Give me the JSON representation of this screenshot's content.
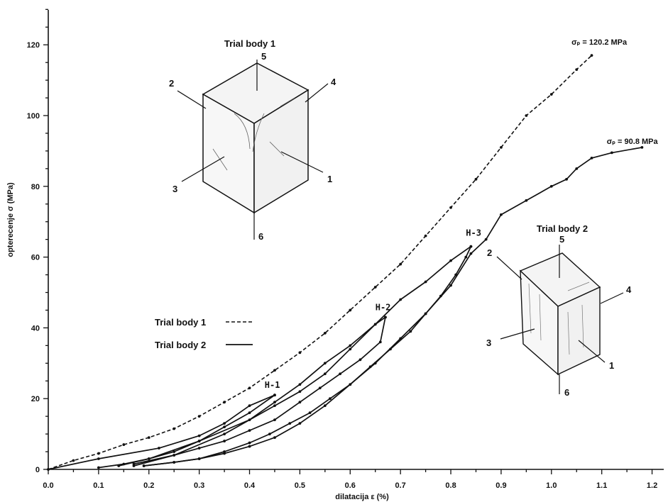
{
  "chart_data": {
    "type": "line",
    "xlabel": "dilatacija ε (%)",
    "ylabel": "opterecenje σ (MPa)",
    "xlim": [
      0,
      1.25
    ],
    "ylim": [
      0,
      130
    ],
    "xticks": [
      "0.0",
      "0.1",
      "0.2",
      "0.3",
      "0.4",
      "0.5",
      "0.6",
      "0.7",
      "0.8",
      "0.9",
      "1.0",
      "1.1",
      "1.2"
    ],
    "yticks": [
      "0",
      "20",
      "40",
      "60",
      "80",
      "100",
      "120"
    ],
    "grid": false,
    "legend": {
      "position": "middle-left",
      "entries": [
        {
          "label": "Trial body 1",
          "style": "dashed"
        },
        {
          "label": "Trial body 2",
          "style": "solid"
        }
      ]
    },
    "series": [
      {
        "name": "Trial body 1",
        "style": "dashed",
        "x": [
          0,
          0.05,
          0.1,
          0.15,
          0.2,
          0.25,
          0.3,
          0.35,
          0.4,
          0.45,
          0.5,
          0.55,
          0.6,
          0.65,
          0.7,
          0.75,
          0.8,
          0.85,
          0.9,
          0.95,
          1.0,
          1.05,
          1.08
        ],
        "y": [
          0,
          2.5,
          4.5,
          7,
          9,
          11.5,
          15,
          19,
          23,
          28,
          33,
          38.5,
          45,
          51.5,
          58,
          66,
          74,
          82,
          91,
          100,
          106,
          113,
          117
        ]
      },
      {
        "name": "Trial body 2",
        "style": "solid",
        "segments": [
          {
            "x": [
              0,
              0.1,
              0.22,
              0.3,
              0.35,
              0.4,
              0.45
            ],
            "y": [
              0,
              3,
              6,
              9.5,
              13,
              18,
              21
            ]
          },
          {
            "x": [
              0.45,
              0.4,
              0.35,
              0.3,
              0.25,
              0.2,
              0.15,
              0.1
            ],
            "y": [
              21,
              16,
              12,
              8,
              5,
              3,
              1.5,
              0.5
            ]
          },
          {
            "x": [
              0.14,
              0.2,
              0.3,
              0.4,
              0.45,
              0.5,
              0.55,
              0.6,
              0.65,
              0.67
            ],
            "y": [
              1,
              3,
              8,
              14,
              19,
              24,
              30,
              35,
              41,
              43
            ]
          },
          {
            "x": [
              0.67,
              0.66,
              0.62,
              0.58,
              0.54,
              0.5,
              0.45,
              0.4,
              0.35,
              0.3,
              0.25,
              0.17
            ],
            "y": [
              43,
              36,
              31,
              27,
              23,
              19,
              14,
              11,
              8,
              6,
              4,
              1
            ]
          },
          {
            "x": [
              0.17,
              0.25,
              0.35,
              0.45,
              0.5,
              0.55,
              0.6,
              0.65,
              0.7,
              0.75,
              0.8,
              0.84
            ],
            "y": [
              1.5,
              4,
              10,
              18,
              22,
              27,
              34,
              41,
              48,
              53,
              59,
              63
            ]
          },
          {
            "x": [
              0.84,
              0.83,
              0.81,
              0.78,
              0.75,
              0.72,
              0.68,
              0.64,
              0.6,
              0.56,
              0.52,
              0.48,
              0.44,
              0.4,
              0.35,
              0.3,
              0.25,
              0.19
            ],
            "y": [
              63,
              60,
              55,
              49,
              44,
              39,
              34,
              29,
              24,
              20,
              16,
              13,
              10,
              7.5,
              5,
              3,
              2,
              1
            ]
          },
          {
            "x": [
              0.19,
              0.25,
              0.3,
              0.35,
              0.4,
              0.45,
              0.5,
              0.55,
              0.6,
              0.65,
              0.7,
              0.75,
              0.8,
              0.84,
              0.87,
              0.9,
              0.95,
              1.0,
              1.03,
              1.05,
              1.08,
              1.12,
              1.18
            ],
            "y": [
              1,
              2,
              3,
              4.5,
              6.5,
              9,
              13,
              18,
              24,
              30,
              37,
              44,
              52,
              61,
              65,
              72,
              76,
              80,
              82,
              85,
              88,
              89.5,
              91
            ]
          }
        ]
      }
    ],
    "annotations": [
      {
        "text": "σₚ = 120.2 MPa",
        "x": 1.04,
        "y": 120
      },
      {
        "text": "σₚ = 90.8 MPa",
        "x": 1.11,
        "y": 92
      },
      {
        "text": "H-1",
        "x": 0.43,
        "y": 23
      },
      {
        "text": "H-2",
        "x": 0.65,
        "y": 45
      },
      {
        "text": "H-3",
        "x": 0.83,
        "y": 66
      }
    ]
  },
  "specimens": [
    {
      "title": "Trial body 1",
      "faces": [
        "1",
        "2",
        "3",
        "4",
        "5",
        "6"
      ]
    },
    {
      "title": "Trial body 2",
      "faces": [
        "1",
        "2",
        "3",
        "4",
        "5",
        "6"
      ]
    }
  ]
}
